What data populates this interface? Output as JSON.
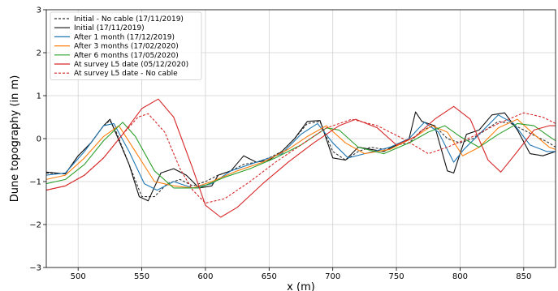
{
  "chart_data": {
    "type": "line",
    "title": "",
    "xlabel": "x (m)",
    "ylabel": "Dune topography (in m)",
    "xlim": [
      475,
      875
    ],
    "ylim": [
      -3,
      3
    ],
    "xticks": [
      500,
      550,
      600,
      650,
      700,
      750,
      800,
      850
    ],
    "yticks": [
      -3,
      -2,
      -1,
      0,
      1,
      2,
      3
    ],
    "grid": true,
    "legend_position": "top-left",
    "series": [
      {
        "name": "Initial - No cable (17/11/2019)",
        "color": "#333333",
        "dash": "dashed",
        "points": [
          [
            475,
            -0.8
          ],
          [
            490,
            -0.82
          ],
          [
            500,
            -0.4
          ],
          [
            510,
            -0.1
          ],
          [
            520,
            0.3
          ],
          [
            525,
            0.42
          ],
          [
            530,
            0.15
          ],
          [
            540,
            -0.6
          ],
          [
            550,
            -1.35
          ],
          [
            560,
            -1.35
          ],
          [
            570,
            -1.05
          ],
          [
            580,
            -0.95
          ],
          [
            590,
            -1.1
          ],
          [
            600,
            -1.0
          ],
          [
            610,
            -0.85
          ],
          [
            620,
            -0.75
          ],
          [
            630,
            -0.6
          ],
          [
            640,
            -0.55
          ],
          [
            650,
            -0.45
          ],
          [
            660,
            -0.3
          ],
          [
            670,
            0.0
          ],
          [
            680,
            0.35
          ],
          [
            690,
            0.4
          ],
          [
            700,
            -0.3
          ],
          [
            710,
            -0.5
          ],
          [
            720,
            -0.3
          ],
          [
            730,
            -0.2
          ],
          [
            740,
            -0.25
          ],
          [
            750,
            -0.15
          ],
          [
            760,
            -0.1
          ],
          [
            770,
            0.2
          ],
          [
            780,
            0.3
          ],
          [
            790,
            0.0
          ],
          [
            800,
            -0.1
          ],
          [
            810,
            0.0
          ],
          [
            820,
            0.2
          ],
          [
            830,
            0.4
          ],
          [
            840,
            0.35
          ],
          [
            850,
            0.2
          ],
          [
            860,
            0.05
          ],
          [
            870,
            -0.1
          ],
          [
            875,
            -0.2
          ]
        ]
      },
      {
        "name": "Initial (17/11/2019)",
        "color": "#111111",
        "dash": "solid",
        "points": [
          [
            475,
            -0.78
          ],
          [
            490,
            -0.82
          ],
          [
            500,
            -0.4
          ],
          [
            510,
            -0.1
          ],
          [
            520,
            0.3
          ],
          [
            525,
            0.45
          ],
          [
            530,
            0.1
          ],
          [
            540,
            -0.6
          ],
          [
            548,
            -1.35
          ],
          [
            555,
            -1.45
          ],
          [
            565,
            -0.8
          ],
          [
            575,
            -0.7
          ],
          [
            585,
            -0.85
          ],
          [
            595,
            -1.15
          ],
          [
            605,
            -1.1
          ],
          [
            610,
            -0.85
          ],
          [
            620,
            -0.75
          ],
          [
            630,
            -0.4
          ],
          [
            640,
            -0.55
          ],
          [
            650,
            -0.5
          ],
          [
            660,
            -0.3
          ],
          [
            670,
            0.0
          ],
          [
            680,
            0.4
          ],
          [
            690,
            0.42
          ],
          [
            700,
            -0.45
          ],
          [
            710,
            -0.5
          ],
          [
            720,
            -0.2
          ],
          [
            730,
            -0.25
          ],
          [
            740,
            -0.3
          ],
          [
            750,
            -0.15
          ],
          [
            760,
            0.0
          ],
          [
            765,
            0.62
          ],
          [
            770,
            0.4
          ],
          [
            780,
            0.3
          ],
          [
            790,
            -0.75
          ],
          [
            795,
            -0.8
          ],
          [
            805,
            0.1
          ],
          [
            815,
            0.2
          ],
          [
            825,
            0.55
          ],
          [
            835,
            0.6
          ],
          [
            845,
            0.2
          ],
          [
            855,
            -0.35
          ],
          [
            865,
            -0.4
          ],
          [
            875,
            -0.3
          ]
        ]
      },
      {
        "name": "After 1 month (17/12/2019)",
        "color": "#1f77b4",
        "dash": "solid",
        "points": [
          [
            475,
            -0.85
          ],
          [
            490,
            -0.8
          ],
          [
            505,
            -0.3
          ],
          [
            520,
            0.3
          ],
          [
            528,
            0.35
          ],
          [
            540,
            -0.3
          ],
          [
            552,
            -1.05
          ],
          [
            562,
            -1.2
          ],
          [
            575,
            -1.0
          ],
          [
            590,
            -1.15
          ],
          [
            605,
            -1.05
          ],
          [
            620,
            -0.75
          ],
          [
            640,
            -0.55
          ],
          [
            660,
            -0.35
          ],
          [
            675,
            0.1
          ],
          [
            688,
            0.35
          ],
          [
            700,
            -0.1
          ],
          [
            712,
            -0.45
          ],
          [
            725,
            -0.35
          ],
          [
            745,
            -0.2
          ],
          [
            760,
            0.0
          ],
          [
            772,
            0.38
          ],
          [
            783,
            0.15
          ],
          [
            795,
            -0.55
          ],
          [
            803,
            -0.25
          ],
          [
            815,
            0.1
          ],
          [
            830,
            0.55
          ],
          [
            842,
            0.35
          ],
          [
            855,
            -0.15
          ],
          [
            868,
            -0.3
          ],
          [
            875,
            -0.3
          ]
        ]
      },
      {
        "name": "After 3 months (17/02/2020)",
        "color": "#ff7f0e",
        "dash": "solid",
        "points": [
          [
            475,
            -0.95
          ],
          [
            490,
            -0.85
          ],
          [
            505,
            -0.45
          ],
          [
            520,
            0.05
          ],
          [
            532,
            0.3
          ],
          [
            545,
            -0.3
          ],
          [
            560,
            -1.0
          ],
          [
            575,
            -1.1
          ],
          [
            590,
            -1.15
          ],
          [
            605,
            -1.0
          ],
          [
            625,
            -0.75
          ],
          [
            645,
            -0.55
          ],
          [
            665,
            -0.25
          ],
          [
            680,
            0.05
          ],
          [
            695,
            0.3
          ],
          [
            710,
            -0.1
          ],
          [
            725,
            -0.35
          ],
          [
            745,
            -0.25
          ],
          [
            765,
            0.05
          ],
          [
            778,
            0.3
          ],
          [
            790,
            0.15
          ],
          [
            802,
            -0.4
          ],
          [
            815,
            -0.2
          ],
          [
            830,
            0.25
          ],
          [
            845,
            0.45
          ],
          [
            858,
            0.1
          ],
          [
            870,
            -0.2
          ],
          [
            875,
            -0.25
          ]
        ]
      },
      {
        "name": "After 6 months (17/05/2020)",
        "color": "#2ca02c",
        "dash": "solid",
        "points": [
          [
            475,
            -1.05
          ],
          [
            490,
            -0.95
          ],
          [
            505,
            -0.6
          ],
          [
            520,
            -0.05
          ],
          [
            535,
            0.38
          ],
          [
            545,
            0.05
          ],
          [
            560,
            -0.75
          ],
          [
            575,
            -1.15
          ],
          [
            595,
            -1.15
          ],
          [
            615,
            -0.9
          ],
          [
            635,
            -0.7
          ],
          [
            655,
            -0.45
          ],
          [
            675,
            -0.15
          ],
          [
            695,
            0.25
          ],
          [
            705,
            0.2
          ],
          [
            720,
            -0.2
          ],
          [
            740,
            -0.35
          ],
          [
            760,
            -0.1
          ],
          [
            775,
            0.15
          ],
          [
            788,
            0.3
          ],
          [
            800,
            0.05
          ],
          [
            815,
            -0.2
          ],
          [
            830,
            0.1
          ],
          [
            845,
            0.35
          ],
          [
            858,
            0.3
          ],
          [
            870,
            0.05
          ],
          [
            875,
            -0.05
          ]
        ]
      },
      {
        "name": "At survey L5 date (05/12/2020)",
        "color": "#d62728",
        "dash": "solid",
        "points": [
          [
            475,
            -1.2
          ],
          [
            490,
            -1.1
          ],
          [
            505,
            -0.85
          ],
          [
            520,
            -0.45
          ],
          [
            535,
            0.1
          ],
          [
            550,
            0.7
          ],
          [
            563,
            0.92
          ],
          [
            575,
            0.5
          ],
          [
            590,
            -0.7
          ],
          [
            600,
            -1.55
          ],
          [
            612,
            -1.83
          ],
          [
            625,
            -1.6
          ],
          [
            645,
            -1.05
          ],
          [
            665,
            -0.55
          ],
          [
            685,
            -0.1
          ],
          [
            705,
            0.3
          ],
          [
            718,
            0.45
          ],
          [
            735,
            0.25
          ],
          [
            750,
            -0.15
          ],
          [
            765,
            0.05
          ],
          [
            780,
            0.45
          ],
          [
            795,
            0.75
          ],
          [
            808,
            0.45
          ],
          [
            822,
            -0.5
          ],
          [
            832,
            -0.78
          ],
          [
            845,
            -0.3
          ],
          [
            858,
            0.2
          ],
          [
            870,
            0.3
          ],
          [
            875,
            0.3
          ]
        ]
      },
      {
        "name": "At survey L5 date - No cable",
        "color": "#d62728",
        "dash": "dashed",
        "points": [
          [
            475,
            -1.2
          ],
          [
            490,
            -1.1
          ],
          [
            505,
            -0.85
          ],
          [
            520,
            -0.45
          ],
          [
            535,
            0.1
          ],
          [
            547,
            0.5
          ],
          [
            555,
            0.58
          ],
          [
            568,
            0.15
          ],
          [
            580,
            -0.7
          ],
          [
            590,
            -1.2
          ],
          [
            600,
            -1.5
          ],
          [
            615,
            -1.4
          ],
          [
            635,
            -1.0
          ],
          [
            655,
            -0.55
          ],
          [
            675,
            -0.15
          ],
          [
            695,
            0.25
          ],
          [
            715,
            0.45
          ],
          [
            735,
            0.3
          ],
          [
            755,
            0.0
          ],
          [
            775,
            -0.35
          ],
          [
            790,
            -0.2
          ],
          [
            810,
            0.05
          ],
          [
            830,
            0.35
          ],
          [
            850,
            0.6
          ],
          [
            865,
            0.5
          ],
          [
            875,
            0.35
          ]
        ]
      }
    ]
  }
}
